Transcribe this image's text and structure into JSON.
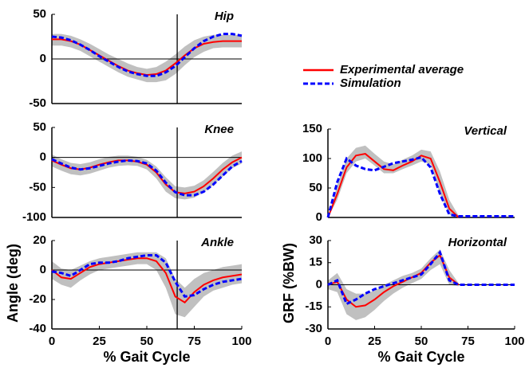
{
  "chart_data": [
    {
      "type": "line",
      "title": "Hip",
      "x": [
        0,
        5,
        10,
        15,
        20,
        25,
        30,
        35,
        40,
        45,
        50,
        55,
        60,
        65,
        70,
        75,
        80,
        85,
        90,
        95,
        100
      ],
      "xlim": [
        0,
        100
      ],
      "ylim": [
        -50,
        50
      ],
      "yticks": [
        -50,
        0,
        50
      ],
      "toe_off": 66,
      "band": {
        "color": "#c0c0c0",
        "lower": [
          15,
          15,
          13,
          9,
          3,
          -3,
          -9,
          -15,
          -20,
          -23,
          -26,
          -26,
          -24,
          -17,
          -7,
          2,
          8,
          12,
          13,
          13,
          13
        ],
        "upper": [
          28,
          28,
          26,
          22,
          17,
          11,
          5,
          0,
          -5,
          -9,
          -11,
          -9,
          -3,
          5,
          14,
          21,
          25,
          27,
          27,
          27,
          27
        ]
      },
      "series": [
        {
          "name": "Experimental average",
          "color": "#ff0000",
          "dashed": false,
          "values": [
            22,
            22,
            20,
            16,
            10,
            4,
            -2,
            -8,
            -13,
            -16,
            -18,
            -17,
            -13,
            -5,
            4,
            12,
            17,
            19,
            20,
            20,
            20
          ]
        },
        {
          "name": "Simulation",
          "color": "#0000ff",
          "dashed": true,
          "values": [
            25,
            24,
            21,
            16,
            10,
            3,
            -3,
            -9,
            -14,
            -17,
            -19,
            -19,
            -15,
            -8,
            2,
            12,
            20,
            25,
            28,
            28,
            26
          ]
        }
      ]
    },
    {
      "type": "line",
      "title": "Knee",
      "x": [
        0,
        5,
        10,
        15,
        20,
        25,
        30,
        35,
        40,
        45,
        50,
        55,
        60,
        65,
        70,
        75,
        80,
        85,
        90,
        95,
        100
      ],
      "xlim": [
        0,
        100
      ],
      "ylim": [
        -100,
        50
      ],
      "yticks": [
        -100,
        -50,
        0,
        50
      ],
      "toe_off": 66,
      "band": {
        "color": "#c0c0c0",
        "lower": [
          -15,
          -22,
          -28,
          -30,
          -27,
          -22,
          -17,
          -14,
          -13,
          -14,
          -20,
          -35,
          -57,
          -68,
          -70,
          -67,
          -58,
          -46,
          -32,
          -18,
          -10
        ],
        "upper": [
          5,
          -3,
          -9,
          -11,
          -8,
          -3,
          1,
          3,
          3,
          1,
          -4,
          -15,
          -33,
          -48,
          -50,
          -47,
          -38,
          -24,
          -9,
          3,
          10
        ]
      },
      "series": [
        {
          "color": "#ff0000",
          "dashed": false,
          "values": [
            -5,
            -12,
            -18,
            -20,
            -17,
            -12,
            -8,
            -5,
            -5,
            -7,
            -12,
            -25,
            -45,
            -58,
            -60,
            -57,
            -48,
            -35,
            -20,
            -8,
            0
          ]
        },
        {
          "color": "#0000ff",
          "dashed": true,
          "values": [
            -3,
            -10,
            -17,
            -20,
            -18,
            -14,
            -10,
            -7,
            -5,
            -6,
            -10,
            -22,
            -42,
            -58,
            -63,
            -63,
            -57,
            -45,
            -30,
            -15,
            -6
          ]
        }
      ]
    },
    {
      "type": "line",
      "title": "Ankle",
      "x": [
        0,
        5,
        10,
        15,
        20,
        25,
        30,
        35,
        40,
        45,
        50,
        55,
        60,
        65,
        70,
        75,
        80,
        85,
        90,
        95,
        100
      ],
      "xlim": [
        0,
        100
      ],
      "ylim": [
        -40,
        20
      ],
      "yticks": [
        -40,
        -20,
        0,
        20
      ],
      "xticks": [
        0,
        25,
        50,
        75,
        100
      ],
      "toe_off": 66,
      "x_label": "% Gait Cycle",
      "y_label": "Angle (deg)",
      "band": {
        "color": "#c0c0c0",
        "lower": [
          -6,
          -10,
          -12,
          -7,
          -3,
          0,
          1,
          2,
          3,
          4,
          4,
          0,
          -12,
          -30,
          -32,
          -25,
          -18,
          -14,
          -12,
          -10,
          -9
        ],
        "upper": [
          6,
          1,
          0,
          3,
          6,
          8,
          9,
          10,
          11,
          12,
          12,
          12,
          8,
          -6,
          -12,
          -6,
          -2,
          0,
          2,
          3,
          4
        ]
      },
      "series": [
        {
          "color": "#ff0000",
          "dashed": false,
          "values": [
            0,
            -5,
            -6,
            -2,
            2,
            4,
            5,
            6,
            7,
            8,
            8,
            6,
            -2,
            -18,
            -22,
            -15,
            -10,
            -7,
            -5,
            -4,
            -3
          ]
        },
        {
          "color": "#0000ff",
          "dashed": true,
          "values": [
            -1,
            -2,
            -4,
            0,
            4,
            5,
            5,
            6,
            8,
            9,
            10,
            10,
            5,
            -8,
            -18,
            -17,
            -13,
            -10,
            -8,
            -7,
            -6
          ]
        }
      ]
    },
    {
      "type": "line",
      "title": "Vertical",
      "x": [
        0,
        5,
        10,
        15,
        20,
        25,
        30,
        35,
        40,
        45,
        50,
        55,
        60,
        65,
        70,
        75,
        80,
        85,
        90,
        95,
        100
      ],
      "xlim": [
        0,
        100
      ],
      "ylim": [
        0,
        150
      ],
      "yticks": [
        0,
        50,
        100,
        150
      ],
      "band": {
        "color": "#c0c0c0",
        "lower": [
          0,
          30,
          75,
          95,
          100,
          88,
          75,
          75,
          82,
          88,
          95,
          90,
          40,
          5,
          0,
          null,
          null,
          null,
          null,
          null,
          null
        ],
        "upper": [
          0,
          55,
          100,
          118,
          122,
          108,
          95,
          90,
          98,
          105,
          115,
          112,
          78,
          30,
          3,
          null,
          null,
          null,
          null,
          null,
          null
        ]
      },
      "series": [
        {
          "color": "#ff0000",
          "dashed": false,
          "values": [
            0,
            40,
            85,
            105,
            108,
            95,
            82,
            80,
            88,
            95,
            105,
            100,
            60,
            15,
            0,
            null,
            null,
            null,
            null,
            null,
            null
          ]
        },
        {
          "color": "#0000ff",
          "dashed": true,
          "values": [
            0,
            60,
            100,
            88,
            82,
            80,
            86,
            92,
            95,
            98,
            102,
            85,
            40,
            5,
            2,
            2,
            2,
            2,
            2,
            2,
            2
          ]
        }
      ]
    },
    {
      "type": "line",
      "title": "Horizontal",
      "x": [
        0,
        5,
        10,
        15,
        20,
        25,
        30,
        35,
        40,
        45,
        50,
        55,
        60,
        65,
        70,
        75,
        80,
        85,
        90,
        95,
        100
      ],
      "xlim": [
        0,
        100
      ],
      "ylim": [
        -30,
        30
      ],
      "yticks": [
        -30,
        -15,
        0,
        15,
        30
      ],
      "xticks": [
        0,
        25,
        50,
        75,
        100
      ],
      "x_label": "% Gait Cycle",
      "y_label": "GRF (%BW)",
      "band": {
        "color": "#c0c0c0",
        "lower": [
          -3,
          -5,
          -20,
          -24,
          -22,
          -17,
          -11,
          -6,
          -2,
          1,
          4,
          10,
          14,
          0,
          -1,
          null,
          null,
          null,
          null,
          null,
          null
        ],
        "upper": [
          3,
          8,
          -3,
          -6,
          -6,
          -4,
          0,
          3,
          6,
          8,
          11,
          18,
          24,
          10,
          1,
          null,
          null,
          null,
          null,
          null,
          null
        ]
      },
      "series": [
        {
          "color": "#ff0000",
          "dashed": false,
          "values": [
            0,
            2,
            -10,
            -15,
            -14,
            -10,
            -5,
            -1,
            2,
            5,
            8,
            15,
            20,
            5,
            0,
            null,
            null,
            null,
            null,
            null,
            null
          ]
        },
        {
          "color": "#0000ff",
          "dashed": true,
          "values": [
            0,
            3,
            -13,
            -10,
            -6,
            -3,
            -1,
            1,
            3,
            5,
            7,
            14,
            22,
            3,
            0,
            0,
            0,
            0,
            0,
            0,
            0
          ]
        }
      ]
    }
  ]
}
